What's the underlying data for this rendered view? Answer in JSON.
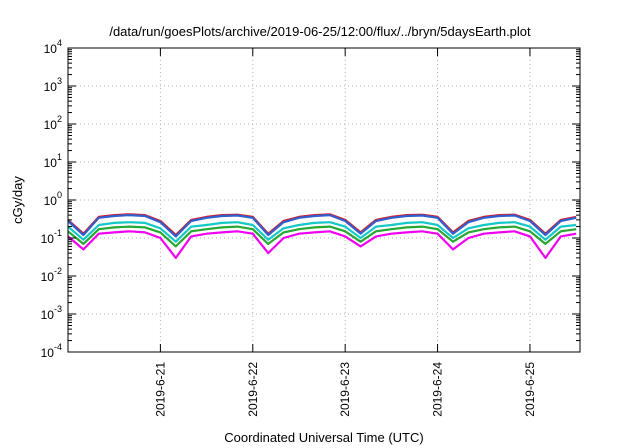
{
  "chart_data": {
    "type": "line",
    "title": "/data/run/goesPlots/archive/2019-06-25/12:00/flux/../bryn/5daysEarth.plot",
    "xlabel": "Coordinated Universal Time (UTC)",
    "ylabel": "cGy/day",
    "yscale": "log",
    "ylim": [
      0.0001,
      10000
    ],
    "xlim": [
      "2019-06-20 00:00",
      "2019-06-25 13:00"
    ],
    "x_ticks": [
      "2019-6-21",
      "2019-6-22",
      "2019-6-23",
      "2019-6-24",
      "2019-6-25"
    ],
    "y_ticks": [
      {
        "base": "10",
        "exp": "-4"
      },
      {
        "base": "10",
        "exp": "-3"
      },
      {
        "base": "10",
        "exp": "-2"
      },
      {
        "base": "10",
        "exp": "-1"
      },
      {
        "base": "10",
        "exp": "0"
      },
      {
        "base": "10",
        "exp": "1"
      },
      {
        "base": "10",
        "exp": "2"
      },
      {
        "base": "10",
        "exp": "3"
      },
      {
        "base": "10",
        "exp": "4"
      }
    ],
    "grid": true,
    "legend": "none",
    "x": [
      "2019-06-20 00:00",
      "2019-06-20 04:00",
      "2019-06-20 08:00",
      "2019-06-20 12:00",
      "2019-06-20 16:00",
      "2019-06-20 20:00",
      "2019-06-21 00:00",
      "2019-06-21 04:00",
      "2019-06-21 08:00",
      "2019-06-21 12:00",
      "2019-06-21 16:00",
      "2019-06-21 20:00",
      "2019-06-22 00:00",
      "2019-06-22 04:00",
      "2019-06-22 08:00",
      "2019-06-22 12:00",
      "2019-06-22 16:00",
      "2019-06-22 20:00",
      "2019-06-23 00:00",
      "2019-06-23 04:00",
      "2019-06-23 08:00",
      "2019-06-23 12:00",
      "2019-06-23 16:00",
      "2019-06-23 20:00",
      "2019-06-24 00:00",
      "2019-06-24 04:00",
      "2019-06-24 08:00",
      "2019-06-24 12:00",
      "2019-06-24 16:00",
      "2019-06-24 20:00",
      "2019-06-25 00:00",
      "2019-06-25 04:00",
      "2019-06-25 08:00",
      "2019-06-25 12:00"
    ],
    "series": [
      {
        "color": "#d0202a",
        "values": [
          0.3,
          0.13,
          0.36,
          0.4,
          0.42,
          0.4,
          0.28,
          0.12,
          0.3,
          0.36,
          0.4,
          0.41,
          0.36,
          0.13,
          0.28,
          0.36,
          0.4,
          0.42,
          0.3,
          0.14,
          0.3,
          0.36,
          0.4,
          0.41,
          0.36,
          0.14,
          0.28,
          0.36,
          0.4,
          0.41,
          0.3,
          0.13,
          0.3,
          0.36
        ]
      },
      {
        "color": "#2f5fd0",
        "values": [
          0.28,
          0.12,
          0.34,
          0.38,
          0.4,
          0.38,
          0.26,
          0.11,
          0.28,
          0.34,
          0.38,
          0.39,
          0.34,
          0.12,
          0.26,
          0.34,
          0.38,
          0.4,
          0.28,
          0.13,
          0.28,
          0.34,
          0.38,
          0.39,
          0.34,
          0.13,
          0.26,
          0.34,
          0.38,
          0.39,
          0.28,
          0.12,
          0.28,
          0.34
        ]
      },
      {
        "color": "#14c8c8",
        "values": [
          0.2,
          0.09,
          0.22,
          0.25,
          0.26,
          0.25,
          0.18,
          0.08,
          0.2,
          0.22,
          0.25,
          0.26,
          0.22,
          0.09,
          0.18,
          0.22,
          0.25,
          0.26,
          0.2,
          0.1,
          0.2,
          0.22,
          0.25,
          0.26,
          0.22,
          0.1,
          0.18,
          0.22,
          0.25,
          0.26,
          0.2,
          0.09,
          0.2,
          0.22
        ]
      },
      {
        "color": "#26a832",
        "values": [
          0.15,
          0.07,
          0.17,
          0.19,
          0.2,
          0.19,
          0.14,
          0.06,
          0.15,
          0.17,
          0.19,
          0.2,
          0.17,
          0.07,
          0.14,
          0.17,
          0.19,
          0.2,
          0.15,
          0.08,
          0.15,
          0.17,
          0.19,
          0.2,
          0.17,
          0.08,
          0.14,
          0.17,
          0.19,
          0.2,
          0.15,
          0.07,
          0.15,
          0.17
        ]
      },
      {
        "color": "#f000f0",
        "values": [
          0.11,
          0.05,
          0.13,
          0.14,
          0.15,
          0.14,
          0.1,
          0.03,
          0.11,
          0.13,
          0.14,
          0.15,
          0.13,
          0.04,
          0.1,
          0.13,
          0.14,
          0.15,
          0.11,
          0.06,
          0.11,
          0.13,
          0.14,
          0.15,
          0.13,
          0.05,
          0.1,
          0.13,
          0.14,
          0.15,
          0.11,
          0.03,
          0.11,
          0.13
        ]
      }
    ]
  }
}
